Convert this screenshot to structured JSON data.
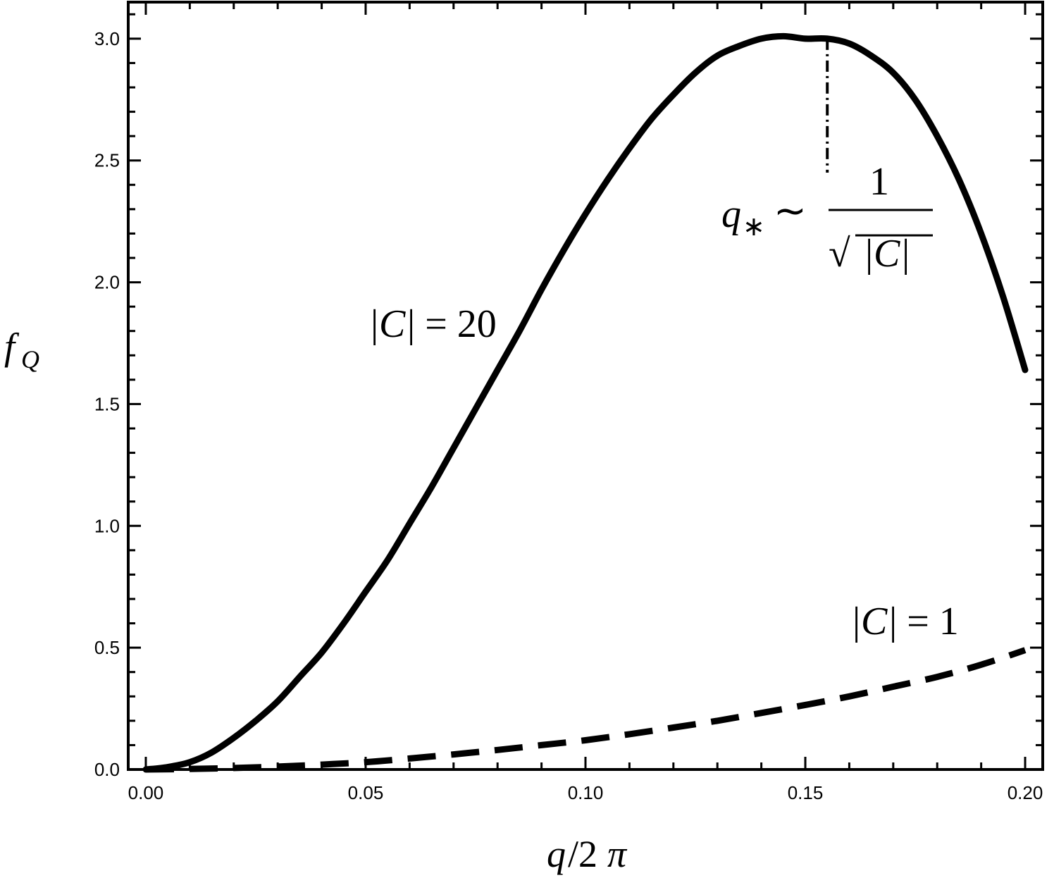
{
  "chart_data": {
    "type": "line",
    "xlabel": "q/2π",
    "ylabel": "f_Q",
    "xlim": [
      -0.004,
      0.204
    ],
    "ylim": [
      0,
      3.15
    ],
    "x_ticks": [
      "0.00",
      "0.05",
      "0.10",
      "0.15",
      "0.20"
    ],
    "y_ticks": [
      "0.0",
      "0.5",
      "1.0",
      "1.5",
      "2.0",
      "2.5",
      "3.0"
    ],
    "grid": false,
    "legend": "none",
    "series": [
      {
        "name": "|C| = 20",
        "style": "solid",
        "x": [
          0,
          0.005,
          0.01,
          0.015,
          0.02,
          0.025,
          0.03,
          0.035,
          0.04,
          0.045,
          0.05,
          0.055,
          0.06,
          0.065,
          0.07,
          0.075,
          0.08,
          0.085,
          0.09,
          0.095,
          0.1,
          0.105,
          0.11,
          0.115,
          0.12,
          0.125,
          0.13,
          0.135,
          0.14,
          0.145,
          0.15,
          0.155,
          0.16,
          0.165,
          0.17,
          0.175,
          0.18,
          0.185,
          0.19,
          0.195,
          0.2
        ],
        "y": [
          0,
          0.01,
          0.03,
          0.07,
          0.13,
          0.2,
          0.28,
          0.38,
          0.48,
          0.6,
          0.73,
          0.86,
          1.01,
          1.16,
          1.32,
          1.48,
          1.64,
          1.8,
          1.97,
          2.13,
          2.28,
          2.42,
          2.55,
          2.67,
          2.77,
          2.86,
          2.93,
          2.97,
          3.0,
          3.01,
          3.0,
          3.0,
          2.98,
          2.93,
          2.86,
          2.75,
          2.6,
          2.42,
          2.2,
          1.94,
          1.64
        ]
      },
      {
        "name": "|C| = 1",
        "style": "dashed",
        "x": [
          0,
          0.01,
          0.02,
          0.03,
          0.04,
          0.05,
          0.06,
          0.07,
          0.08,
          0.09,
          0.1,
          0.11,
          0.12,
          0.13,
          0.14,
          0.15,
          0.16,
          0.17,
          0.18,
          0.19,
          0.2
        ],
        "y": [
          0,
          0.002,
          0.006,
          0.012,
          0.02,
          0.03,
          0.045,
          0.062,
          0.08,
          0.1,
          0.12,
          0.145,
          0.172,
          0.2,
          0.232,
          0.265,
          0.3,
          0.34,
          0.38,
          0.43,
          0.49
        ]
      }
    ],
    "annotations": [
      {
        "text": "|C| = 20"
      },
      {
        "text": "|C| = 1"
      },
      {
        "text": "q* ~ 1/√|C|",
        "marker_x": 0.155,
        "marker_y_range": [
          2.45,
          3.0
        ]
      }
    ]
  }
}
